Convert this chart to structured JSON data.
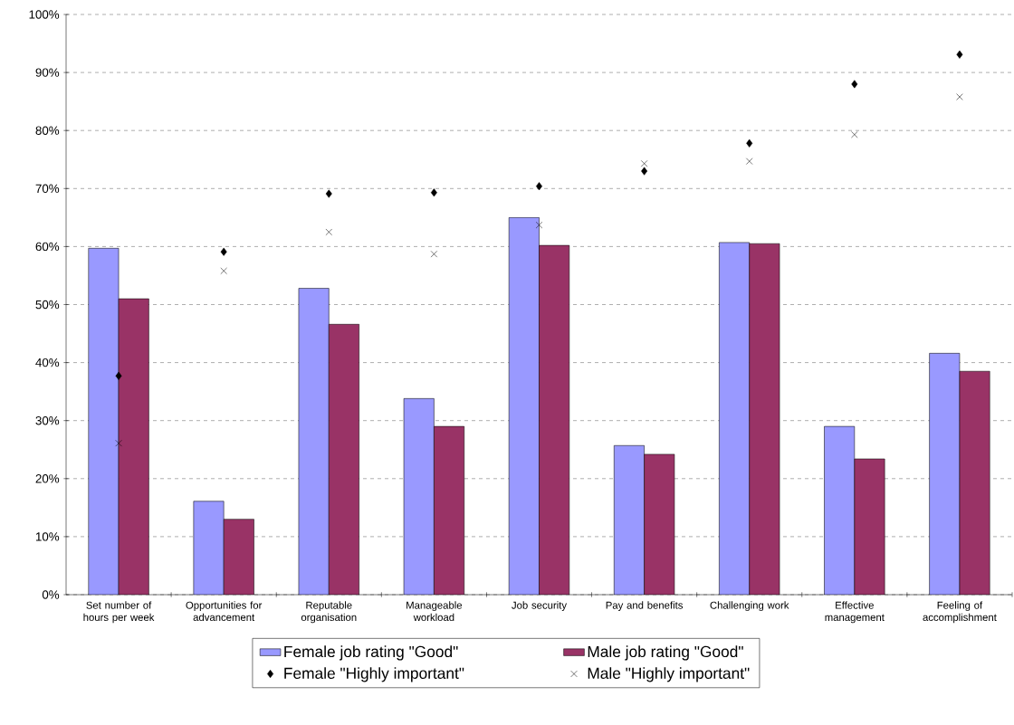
{
  "chart_data": {
    "type": "bar",
    "categories": [
      "Set number of hours per week",
      "Opportunities for advancement",
      "Reputable organisation",
      "Manageable workload",
      "Job security",
      "Pay and benefits",
      "Challenging work",
      "Effective management",
      "Feeling of accomplishment"
    ],
    "series": [
      {
        "name": "Female job rating \"Good\"",
        "type": "bar",
        "color": "#9999ff",
        "values": [
          59.7,
          16.1,
          52.8,
          33.8,
          65.0,
          25.7,
          60.7,
          29.0,
          41.6
        ]
      },
      {
        "name": "Male job rating \"Good\"",
        "type": "bar",
        "color": "#993366",
        "values": [
          51.0,
          13.0,
          46.6,
          29.0,
          60.2,
          24.2,
          60.5,
          23.4,
          38.5
        ]
      },
      {
        "name": "Female \"Highly important\"",
        "type": "scatter",
        "marker": "diamond",
        "color": "#000000",
        "values": [
          37.7,
          59.1,
          69.1,
          69.3,
          70.4,
          73.0,
          77.8,
          88.0,
          93.1
        ]
      },
      {
        "name": "Male \"Highly important\"",
        "type": "scatter",
        "marker": "cross",
        "color": "#000000",
        "values": [
          26.1,
          55.8,
          62.5,
          58.7,
          63.7,
          74.3,
          74.7,
          79.3,
          85.8
        ]
      }
    ],
    "ylim": [
      0,
      100
    ],
    "yticks": [
      {
        "value": 0,
        "label": "0%"
      },
      {
        "value": 10,
        "label": "10%"
      },
      {
        "value": 20,
        "label": "20%"
      },
      {
        "value": 30,
        "label": "30%"
      },
      {
        "value": 40,
        "label": "40%"
      },
      {
        "value": 50,
        "label": "50%"
      },
      {
        "value": 60,
        "label": "60%"
      },
      {
        "value": 70,
        "label": "70%"
      },
      {
        "value": 80,
        "label": "80%"
      },
      {
        "value": 90,
        "label": "90%"
      },
      {
        "value": 100,
        "label": "100%"
      }
    ],
    "grid": "y",
    "legend": "bottom"
  }
}
